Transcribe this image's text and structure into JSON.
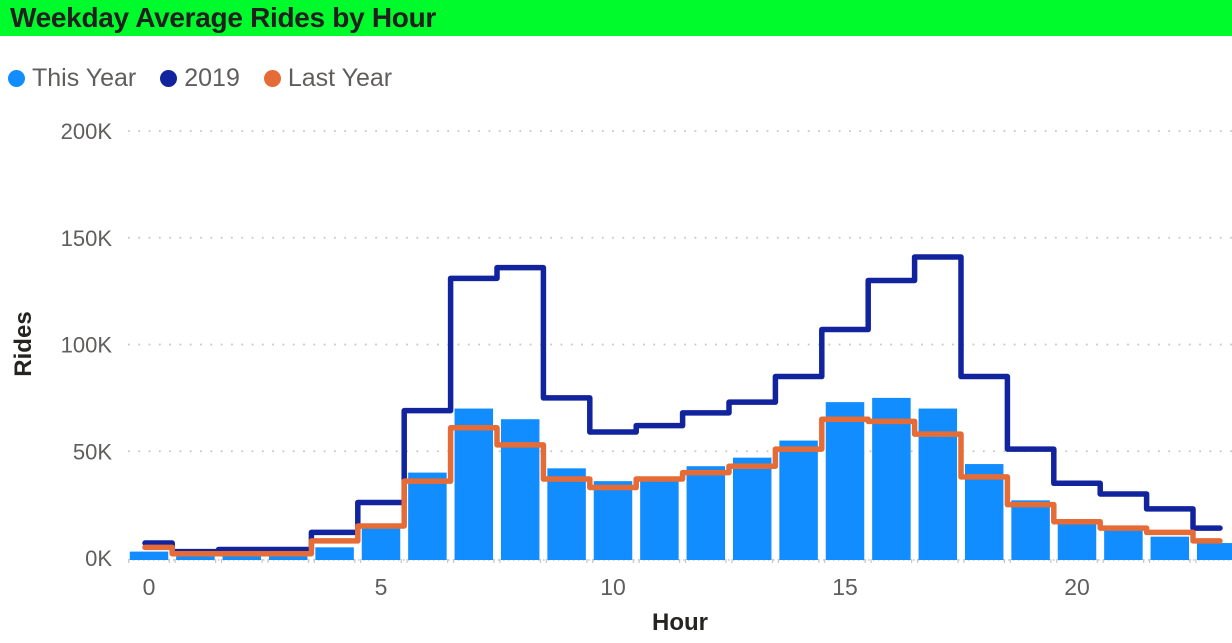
{
  "title": {
    "text": "Weekday Average Rides by Hour",
    "background_color": "#00FB2C",
    "text_color": "#20201E"
  },
  "legend": {
    "items": [
      {
        "label": "This Year",
        "color": "#118DFF"
      },
      {
        "label": "2019",
        "color": "#12239E"
      },
      {
        "label": "Last Year",
        "color": "#E66C37"
      }
    ]
  },
  "chart_data": {
    "type": "bar",
    "subtype": "column bars with two step-line overlays",
    "title": "Weekday Average Rides by Hour",
    "xlabel": "Hour",
    "ylabel": "Rides",
    "values_unit": "thousands of rides (K)",
    "x": [
      0,
      1,
      2,
      3,
      4,
      5,
      6,
      7,
      8,
      9,
      10,
      11,
      12,
      13,
      14,
      15,
      16,
      17,
      18,
      19,
      20,
      21,
      22,
      23
    ],
    "series": [
      {
        "name": "This Year",
        "render": "bar",
        "color": "#118DFF",
        "values": [
          3,
          2,
          1,
          1,
          5,
          16,
          40,
          70,
          65,
          42,
          36,
          38,
          43,
          47,
          55,
          73,
          75,
          70,
          44,
          27,
          16,
          13,
          10,
          7
        ]
      },
      {
        "name": "2019",
        "render": "step-line",
        "color": "#12239E",
        "values": [
          7,
          3,
          4,
          4,
          12,
          26,
          69,
          131,
          136,
          75,
          59,
          62,
          68,
          73,
          85,
          107,
          130,
          141,
          85,
          51,
          35,
          30,
          23,
          14
        ]
      },
      {
        "name": "Last Year",
        "render": "step-line",
        "color": "#E66C37",
        "values": [
          5,
          2,
          2,
          2,
          8,
          15,
          36,
          61,
          53,
          37,
          33,
          37,
          40,
          43,
          51,
          65,
          64,
          58,
          38,
          25,
          17,
          14,
          12,
          8
        ]
      }
    ],
    "ylim": [
      0,
      200
    ],
    "y_ticks": [
      {
        "value": 0,
        "label": "0K"
      },
      {
        "value": 50,
        "label": "50K"
      },
      {
        "value": 100,
        "label": "100K"
      },
      {
        "value": 150,
        "label": "150K"
      },
      {
        "value": 200,
        "label": "200K"
      }
    ],
    "x_ticks": [
      {
        "value": 0,
        "label": "0"
      },
      {
        "value": 5,
        "label": "5"
      },
      {
        "value": 10,
        "label": "10"
      },
      {
        "value": 15,
        "label": "15"
      },
      {
        "value": 20,
        "label": "20"
      }
    ],
    "grid": "horizontal dotted gridlines",
    "legend_position": "top-left"
  },
  "colors": {
    "axis_text": "#605E5C",
    "axis_title_text": "#252423",
    "gridline": "#C8C6C4",
    "background": "#FFFFFF"
  }
}
